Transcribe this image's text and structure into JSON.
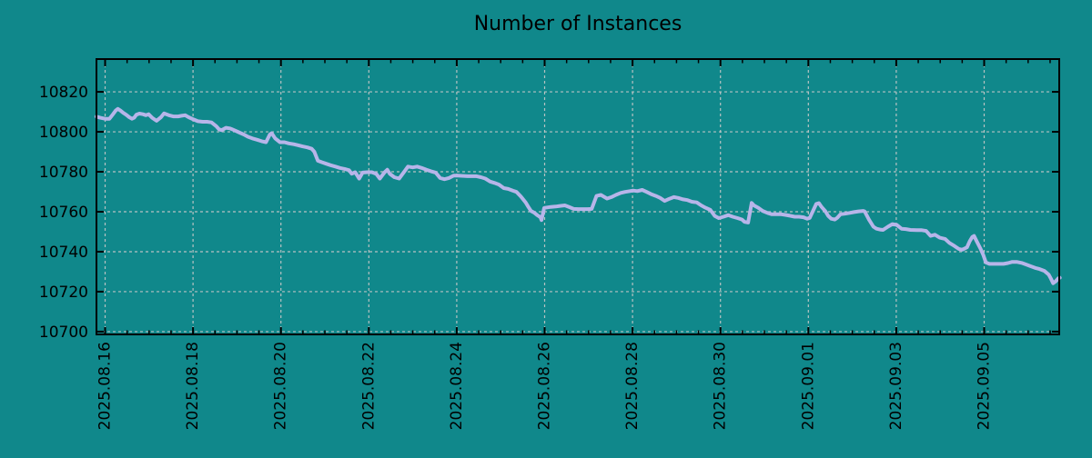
{
  "colors": {
    "background": "#10888b",
    "line": "#b7b5e9",
    "grid": "#c9c9c9",
    "axis": "#000000",
    "text": "#000000"
  },
  "chart_data": {
    "type": "line",
    "title": "Number of Instances",
    "xlabel": "",
    "ylabel": "",
    "legend": "none",
    "grid": true,
    "x_tick_labels": [
      "2025.08.16",
      "2025.08.18",
      "2025.08.20",
      "2025.08.22",
      "2025.08.24",
      "2025.08.26",
      "2025.08.28",
      "2025.08.30",
      "2025.09.01",
      "2025.09.03",
      "2025.09.05"
    ],
    "x_tick_days": [
      0,
      2,
      4,
      6,
      8,
      10,
      12,
      14,
      16,
      18,
      20
    ],
    "x_minor_interval_days": 0.5,
    "y_ticks": [
      10700,
      10720,
      10740,
      10760,
      10780,
      10800,
      10820
    ],
    "x_range_days": [
      -0.197,
      21.708
    ],
    "y_range": [
      10698.6,
      10836.4
    ],
    "series": [
      {
        "name": "instances",
        "color": "#b7b5e9",
        "points": [
          [
            -0.2,
            10807.6
          ],
          [
            -0.11,
            10807.0
          ],
          [
            0.0,
            10806.5
          ],
          [
            0.1,
            10806.5
          ],
          [
            0.17,
            10808.5
          ],
          [
            0.24,
            10810.6
          ],
          [
            0.29,
            10811.5
          ],
          [
            0.35,
            10810.6
          ],
          [
            0.41,
            10809.5
          ],
          [
            0.48,
            10808.5
          ],
          [
            0.55,
            10807.3
          ],
          [
            0.61,
            10806.5
          ],
          [
            0.66,
            10807.0
          ],
          [
            0.71,
            10808.5
          ],
          [
            0.78,
            10809.1
          ],
          [
            0.86,
            10808.8
          ],
          [
            0.93,
            10808.3
          ],
          [
            0.99,
            10808.8
          ],
          [
            1.07,
            10807.0
          ],
          [
            1.17,
            10805.5
          ],
          [
            1.27,
            10807.3
          ],
          [
            1.34,
            10809.2
          ],
          [
            1.45,
            10808.3
          ],
          [
            1.55,
            10807.7
          ],
          [
            1.66,
            10807.7
          ],
          [
            1.74,
            10808.0
          ],
          [
            1.82,
            10808.3
          ],
          [
            1.9,
            10807.3
          ],
          [
            2.01,
            10806.2
          ],
          [
            2.11,
            10805.3
          ],
          [
            2.22,
            10805.0
          ],
          [
            2.32,
            10805.0
          ],
          [
            2.42,
            10804.7
          ],
          [
            2.53,
            10802.8
          ],
          [
            2.59,
            10801.3
          ],
          [
            2.65,
            10800.8
          ],
          [
            2.75,
            10802.0
          ],
          [
            2.84,
            10801.7
          ],
          [
            2.94,
            10800.8
          ],
          [
            3.04,
            10799.8
          ],
          [
            3.15,
            10798.7
          ],
          [
            3.25,
            10797.5
          ],
          [
            3.35,
            10796.7
          ],
          [
            3.46,
            10796.0
          ],
          [
            3.56,
            10795.3
          ],
          [
            3.66,
            10794.8
          ],
          [
            3.75,
            10798.7
          ],
          [
            3.79,
            10799.3
          ],
          [
            3.87,
            10796.7
          ],
          [
            3.98,
            10794.8
          ],
          [
            4.08,
            10794.8
          ],
          [
            4.18,
            10794.2
          ],
          [
            4.29,
            10793.8
          ],
          [
            4.39,
            10793.3
          ],
          [
            4.49,
            10792.7
          ],
          [
            4.6,
            10792.2
          ],
          [
            4.7,
            10791.5
          ],
          [
            4.76,
            10790.0
          ],
          [
            4.84,
            10785.5
          ],
          [
            4.93,
            10784.8
          ],
          [
            5.03,
            10784.0
          ],
          [
            5.13,
            10783.3
          ],
          [
            5.24,
            10782.6
          ],
          [
            5.34,
            10781.9
          ],
          [
            5.45,
            10781.4
          ],
          [
            5.55,
            10780.8
          ],
          [
            5.61,
            10779.0
          ],
          [
            5.69,
            10779.8
          ],
          [
            5.78,
            10776.6
          ],
          [
            5.86,
            10779.6
          ],
          [
            5.96,
            10779.8
          ],
          [
            6.07,
            10779.8
          ],
          [
            6.17,
            10778.9
          ],
          [
            6.25,
            10776.6
          ],
          [
            6.36,
            10779.8
          ],
          [
            6.42,
            10781.0
          ],
          [
            6.48,
            10778.9
          ],
          [
            6.58,
            10777.3
          ],
          [
            6.69,
            10776.6
          ],
          [
            6.79,
            10779.6
          ],
          [
            6.89,
            10782.6
          ],
          [
            7.0,
            10782.2
          ],
          [
            7.1,
            10782.6
          ],
          [
            7.2,
            10781.9
          ],
          [
            7.31,
            10781.0
          ],
          [
            7.41,
            10780.3
          ],
          [
            7.52,
            10779.6
          ],
          [
            7.62,
            10776.9
          ],
          [
            7.72,
            10776.3
          ],
          [
            7.83,
            10776.9
          ],
          [
            7.93,
            10778.1
          ],
          [
            8.03,
            10778.1
          ],
          [
            8.24,
            10777.8
          ],
          [
            8.45,
            10777.8
          ],
          [
            8.55,
            10777.3
          ],
          [
            8.65,
            10776.6
          ],
          [
            8.76,
            10775.1
          ],
          [
            8.86,
            10774.4
          ],
          [
            8.96,
            10773.6
          ],
          [
            9.07,
            10771.8
          ],
          [
            9.17,
            10771.4
          ],
          [
            9.28,
            10770.5
          ],
          [
            9.36,
            10769.9
          ],
          [
            9.46,
            10767.6
          ],
          [
            9.57,
            10764.6
          ],
          [
            9.63,
            10762.4
          ],
          [
            9.69,
            10760.4
          ],
          [
            9.77,
            10759.4
          ],
          [
            9.83,
            10758.3
          ],
          [
            9.9,
            10757.3
          ],
          [
            9.93,
            10755.8
          ],
          [
            9.99,
            10761.9
          ],
          [
            10.14,
            10762.4
          ],
          [
            10.25,
            10762.6
          ],
          [
            10.35,
            10762.9
          ],
          [
            10.46,
            10763.2
          ],
          [
            10.56,
            10762.3
          ],
          [
            10.66,
            10761.4
          ],
          [
            10.77,
            10761.3
          ],
          [
            10.97,
            10761.3
          ],
          [
            11.07,
            10761.4
          ],
          [
            11.18,
            10767.9
          ],
          [
            11.28,
            10768.4
          ],
          [
            11.42,
            10766.6
          ],
          [
            11.52,
            10767.3
          ],
          [
            11.62,
            10768.4
          ],
          [
            11.73,
            10769.4
          ],
          [
            11.83,
            10769.9
          ],
          [
            11.94,
            10770.3
          ],
          [
            12.01,
            10770.6
          ],
          [
            12.11,
            10770.3
          ],
          [
            12.22,
            10770.9
          ],
          [
            12.32,
            10769.9
          ],
          [
            12.42,
            10768.8
          ],
          [
            12.53,
            10767.9
          ],
          [
            12.63,
            10766.9
          ],
          [
            12.73,
            10765.4
          ],
          [
            12.84,
            10766.5
          ],
          [
            12.94,
            10767.3
          ],
          [
            13.04,
            10766.9
          ],
          [
            13.15,
            10766.2
          ],
          [
            13.25,
            10765.8
          ],
          [
            13.35,
            10765.0
          ],
          [
            13.46,
            10764.7
          ],
          [
            13.56,
            10763.2
          ],
          [
            13.66,
            10762.0
          ],
          [
            13.77,
            10760.9
          ],
          [
            13.87,
            10757.9
          ],
          [
            13.96,
            10756.8
          ],
          [
            14.07,
            10757.5
          ],
          [
            14.18,
            10758.3
          ],
          [
            14.28,
            10757.5
          ],
          [
            14.39,
            10756.8
          ],
          [
            14.49,
            10756.1
          ],
          [
            14.55,
            10754.9
          ],
          [
            14.63,
            10754.6
          ],
          [
            14.71,
            10764.4
          ],
          [
            14.76,
            10763.2
          ],
          [
            14.86,
            10762.0
          ],
          [
            14.96,
            10760.4
          ],
          [
            15.07,
            10759.4
          ],
          [
            15.17,
            10758.7
          ],
          [
            15.38,
            10758.7
          ],
          [
            15.48,
            10758.4
          ],
          [
            15.58,
            10758.0
          ],
          [
            15.69,
            10757.5
          ],
          [
            15.79,
            10757.5
          ],
          [
            15.89,
            10757.2
          ],
          [
            15.97,
            10756.5
          ],
          [
            16.03,
            10756.9
          ],
          [
            16.18,
            10763.9
          ],
          [
            16.24,
            10764.3
          ],
          [
            16.3,
            10762.4
          ],
          [
            16.39,
            10760.2
          ],
          [
            16.45,
            10758.0
          ],
          [
            16.52,
            10756.5
          ],
          [
            16.6,
            10756.1
          ],
          [
            16.66,
            10757.0
          ],
          [
            16.73,
            10758.7
          ],
          [
            16.83,
            10759.0
          ],
          [
            16.94,
            10759.4
          ],
          [
            17.04,
            10759.8
          ],
          [
            17.14,
            10760.2
          ],
          [
            17.25,
            10760.4
          ],
          [
            17.28,
            10760.2
          ],
          [
            17.38,
            10756.0
          ],
          [
            17.48,
            10752.5
          ],
          [
            17.55,
            10751.5
          ],
          [
            17.65,
            10751.0
          ],
          [
            17.7,
            10750.9
          ],
          [
            17.81,
            10752.5
          ],
          [
            17.91,
            10753.8
          ],
          [
            18.01,
            10753.4
          ],
          [
            18.12,
            10751.5
          ],
          [
            18.22,
            10751.3
          ],
          [
            18.32,
            10750.9
          ],
          [
            18.47,
            10750.8
          ],
          [
            18.57,
            10750.8
          ],
          [
            18.68,
            10750.4
          ],
          [
            18.78,
            10747.9
          ],
          [
            18.88,
            10748.5
          ],
          [
            18.99,
            10747.0
          ],
          [
            19.11,
            10746.4
          ],
          [
            19.21,
            10744.4
          ],
          [
            19.32,
            10742.9
          ],
          [
            19.42,
            10741.4
          ],
          [
            19.5,
            10741.0
          ],
          [
            19.61,
            10742.2
          ],
          [
            19.67,
            10745.2
          ],
          [
            19.73,
            10747.4
          ],
          [
            19.77,
            10747.9
          ],
          [
            19.83,
            10745.2
          ],
          [
            19.92,
            10741.4
          ],
          [
            19.98,
            10738.4
          ],
          [
            20.04,
            10734.6
          ],
          [
            20.12,
            10733.9
          ],
          [
            20.23,
            10733.9
          ],
          [
            20.33,
            10733.9
          ],
          [
            20.44,
            10733.9
          ],
          [
            20.54,
            10734.3
          ],
          [
            20.64,
            10734.9
          ],
          [
            20.74,
            10734.9
          ],
          [
            20.85,
            10734.4
          ],
          [
            20.95,
            10733.6
          ],
          [
            21.06,
            10732.7
          ],
          [
            21.16,
            10731.9
          ],
          [
            21.26,
            10731.3
          ],
          [
            21.37,
            10730.4
          ],
          [
            21.47,
            10728.5
          ],
          [
            21.52,
            10726.5
          ],
          [
            21.57,
            10724.2
          ],
          [
            21.63,
            10725.2
          ],
          [
            21.69,
            10726.7
          ],
          [
            21.72,
            10727.0
          ]
        ]
      }
    ]
  }
}
